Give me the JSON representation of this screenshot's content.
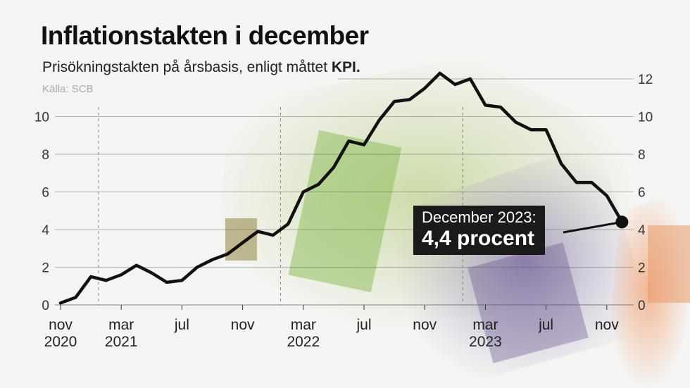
{
  "header": {
    "title": "Inflationstakten i december",
    "subtitle_prefix": "Prisökningstakten på årsbasis, enligt måttet ",
    "subtitle_bold": "KPI.",
    "source": "Källa: SCB"
  },
  "callout": {
    "line1": "December 2023:",
    "line2": "4,4 procent"
  },
  "colors": {
    "line": "#111111",
    "grid": "#555555",
    "callout_bg": "#1a1a1a"
  },
  "chart_data": {
    "type": "line",
    "title": "Inflationstakten i december",
    "subtitle": "Prisökningstakten på årsbasis, enligt måttet KPI.",
    "ylim": [
      0,
      12
    ],
    "yticks_left": [
      0,
      2,
      4,
      6,
      8,
      10
    ],
    "yticks_right": [
      0,
      2,
      4,
      6,
      8,
      10,
      12
    ],
    "xticks": [
      {
        "label": "nov",
        "year": "2020",
        "x": "2020-11"
      },
      {
        "label": "mar",
        "year": "2021",
        "x": "2021-03"
      },
      {
        "label": "jul",
        "year": "",
        "x": "2021-07"
      },
      {
        "label": "nov",
        "year": "",
        "x": "2021-11"
      },
      {
        "label": "mar",
        "year": "2022",
        "x": "2022-03"
      },
      {
        "label": "jul",
        "year": "",
        "x": "2022-07"
      },
      {
        "label": "nov",
        "year": "",
        "x": "2022-11"
      },
      {
        "label": "mar",
        "year": "2023",
        "x": "2023-03"
      },
      {
        "label": "jul",
        "year": "",
        "x": "2023-07"
      },
      {
        "label": "nov",
        "year": "",
        "x": "2023-11"
      }
    ],
    "year_dividers": [
      "2021-01",
      "2022-01",
      "2023-01"
    ],
    "grid": true,
    "series": [
      {
        "x": [
          "2020-11",
          "2020-12",
          "2021-01",
          "2021-02",
          "2021-03",
          "2021-04",
          "2021-05",
          "2021-06",
          "2021-07",
          "2021-08",
          "2021-09",
          "2021-10",
          "2021-11",
          "2021-12",
          "2022-01",
          "2022-02",
          "2022-03",
          "2022-04",
          "2022-05",
          "2022-06",
          "2022-07",
          "2022-08",
          "2022-09",
          "2022-10",
          "2022-11",
          "2022-12",
          "2023-01",
          "2023-02",
          "2023-03",
          "2023-04",
          "2023-05",
          "2023-06",
          "2023-07",
          "2023-08",
          "2023-09",
          "2023-10",
          "2023-11",
          "2023-12"
        ],
        "values": [
          0.1,
          0.4,
          1.5,
          1.3,
          1.6,
          2.1,
          1.7,
          1.2,
          1.3,
          2.0,
          2.4,
          2.7,
          3.3,
          3.9,
          3.7,
          4.3,
          6.0,
          6.4,
          7.3,
          8.7,
          8.5,
          9.8,
          10.8,
          10.9,
          11.5,
          12.3,
          11.7,
          12.0,
          10.6,
          10.5,
          9.7,
          9.3,
          9.3,
          7.5,
          6.5,
          6.5,
          5.8,
          4.4
        ]
      }
    ],
    "highlight": {
      "x": "2023-12",
      "value": 4.4
    }
  }
}
